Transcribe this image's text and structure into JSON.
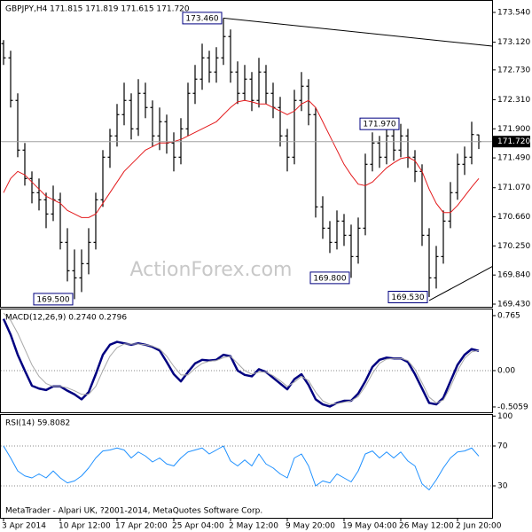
{
  "chart_data": [
    {
      "type": "ohlc",
      "title": "GBPJPY,H4  171.815 171.819 171.615 171.720",
      "watermark": "ActionForex.com",
      "xlim": [
        -0.5,
        68.9
      ],
      "xticks": [
        {
          "value": 0,
          "label": "3 Apr 2014"
        },
        {
          "value": 8,
          "label": "10 Apr 12:00"
        },
        {
          "value": 16,
          "label": "17 Apr 20:00"
        },
        {
          "value": 24,
          "label": "25 Apr 04:00"
        },
        {
          "value": 32,
          "label": "2 May 12:00"
        },
        {
          "value": 40,
          "label": "9 May 20:00"
        },
        {
          "value": 48,
          "label": "19 May 04:00"
        },
        {
          "value": 56,
          "label": "26 May 12:00"
        },
        {
          "value": 64,
          "label": "2 Jun 20:00"
        }
      ],
      "ylim": [
        169.405,
        173.665
      ],
      "yticks": [
        {
          "value": 173.54,
          "label": "173.540"
        },
        {
          "value": 173.12,
          "label": "173.120"
        },
        {
          "value": 172.73,
          "label": "172.730"
        },
        {
          "value": 172.31,
          "label": "172.310"
        },
        {
          "value": 171.9,
          "label": "171.900"
        },
        {
          "value": 171.49,
          "label": "171.490"
        },
        {
          "value": 171.07,
          "label": "171.070"
        },
        {
          "value": 170.66,
          "label": "170.660"
        },
        {
          "value": 170.25,
          "label": "170.250"
        },
        {
          "value": 169.84,
          "label": "169.840"
        },
        {
          "value": 169.43,
          "label": "169.430"
        }
      ],
      "color": "#000000",
      "ohlc": [
        [
          173.1,
          173.15,
          172.8,
          172.9
        ],
        [
          172.9,
          173.0,
          172.2,
          172.3
        ],
        [
          172.3,
          172.4,
          171.5,
          171.6
        ],
        [
          171.6,
          171.7,
          171.1,
          171.2
        ],
        [
          171.2,
          171.3,
          170.85,
          171.0
        ],
        [
          171.0,
          171.2,
          170.75,
          170.9
        ],
        [
          170.9,
          171.0,
          170.5,
          170.7
        ],
        [
          170.7,
          171.1,
          170.6,
          170.9
        ],
        [
          170.9,
          171.0,
          170.2,
          170.3
        ],
        [
          170.3,
          170.5,
          169.75,
          169.9
        ],
        [
          169.9,
          170.2,
          169.5,
          169.8
        ],
        [
          169.8,
          170.2,
          169.6,
          170.0
        ],
        [
          170.0,
          170.5,
          169.85,
          170.3
        ],
        [
          170.3,
          171.0,
          170.2,
          170.9
        ],
        [
          170.9,
          171.6,
          170.8,
          171.5
        ],
        [
          171.5,
          171.9,
          171.35,
          171.8
        ],
        [
          171.8,
          172.25,
          171.65,
          172.1
        ],
        [
          172.1,
          172.55,
          171.95,
          172.3
        ],
        [
          172.3,
          172.4,
          171.75,
          171.9
        ],
        [
          171.9,
          172.6,
          171.8,
          172.4
        ],
        [
          172.4,
          172.55,
          172.05,
          172.2
        ],
        [
          172.2,
          172.3,
          171.65,
          171.8
        ],
        [
          171.8,
          172.2,
          171.6,
          172.0
        ],
        [
          172.0,
          172.1,
          171.55,
          171.7
        ],
        [
          171.7,
          171.85,
          171.3,
          171.5
        ],
        [
          171.5,
          172.05,
          171.4,
          171.9
        ],
        [
          171.9,
          172.55,
          171.8,
          172.4
        ],
        [
          172.4,
          172.8,
          172.25,
          172.6
        ],
        [
          172.6,
          173.1,
          172.45,
          172.9
        ],
        [
          172.9,
          173.0,
          172.55,
          172.7
        ],
        [
          172.7,
          173.05,
          172.55,
          172.9
        ],
        [
          172.9,
          173.46,
          172.8,
          173.2
        ],
        [
          173.2,
          173.3,
          172.55,
          172.7
        ],
        [
          172.7,
          172.85,
          172.25,
          172.4
        ],
        [
          172.4,
          172.8,
          172.3,
          172.6
        ],
        [
          172.6,
          172.7,
          172.15,
          172.3
        ],
        [
          172.3,
          172.9,
          172.2,
          172.7
        ],
        [
          172.7,
          172.8,
          172.25,
          172.4
        ],
        [
          172.4,
          172.55,
          172.05,
          172.2
        ],
        [
          172.2,
          172.35,
          171.65,
          171.8
        ],
        [
          171.8,
          171.9,
          171.3,
          171.5
        ],
        [
          171.5,
          172.45,
          171.4,
          172.3
        ],
        [
          172.3,
          172.7,
          172.15,
          172.5
        ],
        [
          172.5,
          172.6,
          171.95,
          172.1
        ],
        [
          172.1,
          172.2,
          170.65,
          170.8
        ],
        [
          170.8,
          170.95,
          170.35,
          170.5
        ],
        [
          170.5,
          170.6,
          170.15,
          170.3
        ],
        [
          170.3,
          170.75,
          170.2,
          170.6
        ],
        [
          170.6,
          170.7,
          170.25,
          170.4
        ],
        [
          170.4,
          170.55,
          169.8,
          170.1
        ],
        [
          170.1,
          170.65,
          170.0,
          170.5
        ],
        [
          170.5,
          171.55,
          170.4,
          171.4
        ],
        [
          171.4,
          171.85,
          171.3,
          171.7
        ],
        [
          171.7,
          171.8,
          171.35,
          171.5
        ],
        [
          171.5,
          171.95,
          171.4,
          171.8
        ],
        [
          171.8,
          171.9,
          171.45,
          171.6
        ],
        [
          171.6,
          171.97,
          171.5,
          171.8
        ],
        [
          171.8,
          171.9,
          171.35,
          171.5
        ],
        [
          171.5,
          171.6,
          171.15,
          171.3
        ],
        [
          171.3,
          171.4,
          170.25,
          170.4
        ],
        [
          170.4,
          170.5,
          169.53,
          169.8
        ],
        [
          169.8,
          170.25,
          169.65,
          170.1
        ],
        [
          170.1,
          170.75,
          170.0,
          170.6
        ],
        [
          170.6,
          171.15,
          170.5,
          171.0
        ],
        [
          171.0,
          171.55,
          170.9,
          171.4
        ],
        [
          171.4,
          171.65,
          171.25,
          171.5
        ],
        [
          171.5,
          172.0,
          171.4,
          171.82
        ],
        [
          171.815,
          171.819,
          171.615,
          171.72
        ]
      ],
      "ma": {
        "color": "#e31a1c",
        "values": [
          171.0,
          171.2,
          171.3,
          171.25,
          171.15,
          171.05,
          170.95,
          170.9,
          170.85,
          170.75,
          170.7,
          170.65,
          170.65,
          170.7,
          170.85,
          171.0,
          171.15,
          171.3,
          171.4,
          171.5,
          171.6,
          171.65,
          171.7,
          171.7,
          171.72,
          171.75,
          171.8,
          171.85,
          171.9,
          171.95,
          172.0,
          172.1,
          172.2,
          172.28,
          172.3,
          172.28,
          172.25,
          172.25,
          172.2,
          172.15,
          172.1,
          172.15,
          172.25,
          172.3,
          172.2,
          172.0,
          171.8,
          171.6,
          171.4,
          171.25,
          171.12,
          171.1,
          171.15,
          171.25,
          171.35,
          171.42,
          171.48,
          171.5,
          171.45,
          171.3,
          171.05,
          170.85,
          170.72,
          170.72,
          170.82,
          170.95,
          171.08,
          171.2
        ]
      },
      "last_price": {
        "value": 171.72,
        "label": "171.720"
      },
      "annotations": [
        {
          "x": 31,
          "value": 173.46,
          "label": "173.460"
        },
        {
          "x": 10,
          "value": 169.5,
          "label": "169.500"
        },
        {
          "x": 49,
          "value": 169.8,
          "label": "169.800"
        },
        {
          "x": 56,
          "value": 171.97,
          "label": "171.970"
        },
        {
          "x": 60,
          "value": 169.53,
          "label": "169.530"
        }
      ],
      "trendlines": [
        {
          "x": [
            31,
            68.9
          ],
          "y": [
            173.46,
            173.065
          ]
        },
        {
          "x": [
            60,
            68.9
          ],
          "y": [
            169.48,
            169.96
          ]
        }
      ]
    },
    {
      "type": "line",
      "title": "MACD(12,26,9) 0.2740 0.2796",
      "ylim": [
        -0.568,
        0.851
      ],
      "yticks": [
        0.765,
        {
          "value": 0,
          "label": "0.00"
        },
        -0.5059
      ],
      "levels": [
        0
      ],
      "series": [
        {
          "color": "#000080",
          "width": 2.5,
          "values": [
            0.72,
            0.5,
            0.22,
            0.0,
            -0.21,
            -0.25,
            -0.27,
            -0.22,
            -0.22,
            -0.28,
            -0.33,
            -0.4,
            -0.3,
            -0.05,
            0.22,
            0.36,
            0.4,
            0.38,
            0.36,
            0.38,
            0.36,
            0.33,
            0.28,
            0.12,
            -0.05,
            -0.15,
            -0.02,
            0.1,
            0.15,
            0.14,
            0.15,
            0.22,
            0.2,
            0.0,
            -0.06,
            -0.08,
            0.02,
            -0.02,
            -0.1,
            -0.18,
            -0.26,
            -0.12,
            -0.05,
            -0.2,
            -0.4,
            -0.47,
            -0.5,
            -0.45,
            -0.42,
            -0.42,
            -0.32,
            -0.15,
            0.05,
            0.15,
            0.18,
            0.17,
            0.17,
            0.12,
            -0.05,
            -0.25,
            -0.45,
            -0.47,
            -0.38,
            -0.15,
            0.08,
            0.22,
            0.3,
            0.274
          ]
        },
        {
          "color": "#a8a8a8",
          "width": 1,
          "values": [
            0.8,
            0.7,
            0.52,
            0.3,
            0.08,
            -0.08,
            -0.18,
            -0.22,
            -0.22,
            -0.24,
            -0.28,
            -0.33,
            -0.33,
            -0.22,
            0.0,
            0.2,
            0.32,
            0.37,
            0.37,
            0.37,
            0.36,
            0.34,
            0.3,
            0.2,
            0.06,
            -0.06,
            -0.06,
            0.03,
            0.1,
            0.13,
            0.14,
            0.18,
            0.2,
            0.1,
            0.0,
            -0.05,
            -0.02,
            -0.02,
            -0.07,
            -0.14,
            -0.22,
            -0.16,
            -0.08,
            -0.14,
            -0.3,
            -0.42,
            -0.47,
            -0.46,
            -0.44,
            -0.42,
            -0.36,
            -0.22,
            -0.04,
            0.1,
            0.16,
            0.17,
            0.17,
            0.14,
            0.02,
            -0.17,
            -0.37,
            -0.45,
            -0.41,
            -0.23,
            0.0,
            0.17,
            0.26,
            0.2796
          ]
        }
      ]
    },
    {
      "type": "line",
      "title": "RSI(14) 59.8082",
      "footer": "MetaTrader - Alpari UK, ?2001-2014, MetaQuotes Software Corp.",
      "ylim": [
        -2,
        102
      ],
      "yticks": [
        100,
        70,
        30
      ],
      "levels": [
        70,
        30
      ],
      "series": [
        {
          "color": "#1e90ff",
          "width": 1,
          "values": [
            70,
            58,
            45,
            40,
            38,
            42,
            38,
            45,
            38,
            33,
            35,
            40,
            48,
            58,
            65,
            66,
            68,
            66,
            58,
            64,
            60,
            54,
            58,
            52,
            50,
            58,
            64,
            66,
            68,
            62,
            66,
            70,
            55,
            50,
            56,
            50,
            62,
            52,
            48,
            42,
            38,
            58,
            62,
            50,
            30,
            35,
            33,
            42,
            38,
            34,
            45,
            62,
            65,
            58,
            64,
            58,
            64,
            55,
            50,
            32,
            26,
            36,
            48,
            58,
            64,
            65,
            68,
            59.8082
          ]
        }
      ]
    }
  ]
}
